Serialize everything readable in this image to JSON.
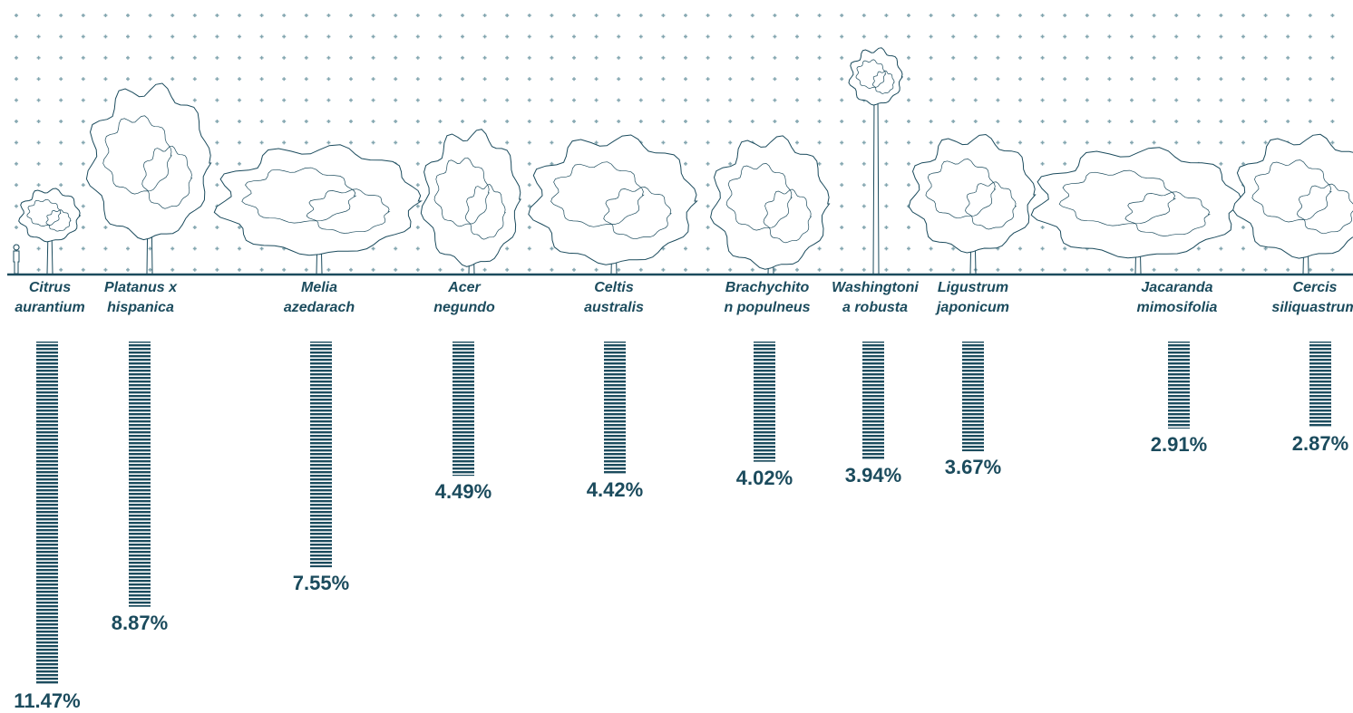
{
  "chart_data": {
    "type": "bar",
    "categories": [
      "Citrus aurantium",
      "Platanus x hispanica",
      "Melia azedarach",
      "Acer negundo",
      "Celtis australis",
      "Brachychiton populneus",
      "Washingtonia robusta",
      "Ligustrum japonicum",
      "Jacaranda mimosifolia",
      "Cercis siliquastrum"
    ],
    "values": [
      11.47,
      8.87,
      7.55,
      4.49,
      4.42,
      4.02,
      3.94,
      3.67,
      2.91,
      2.87
    ],
    "value_labels": [
      "11.47%",
      "8.87%",
      "7.55%",
      "4.49%",
      "4.42%",
      "4.02%",
      "3.94%",
      "3.67%",
      "2.91%",
      "2.87%"
    ],
    "color": "#1b4b5d"
  }
}
